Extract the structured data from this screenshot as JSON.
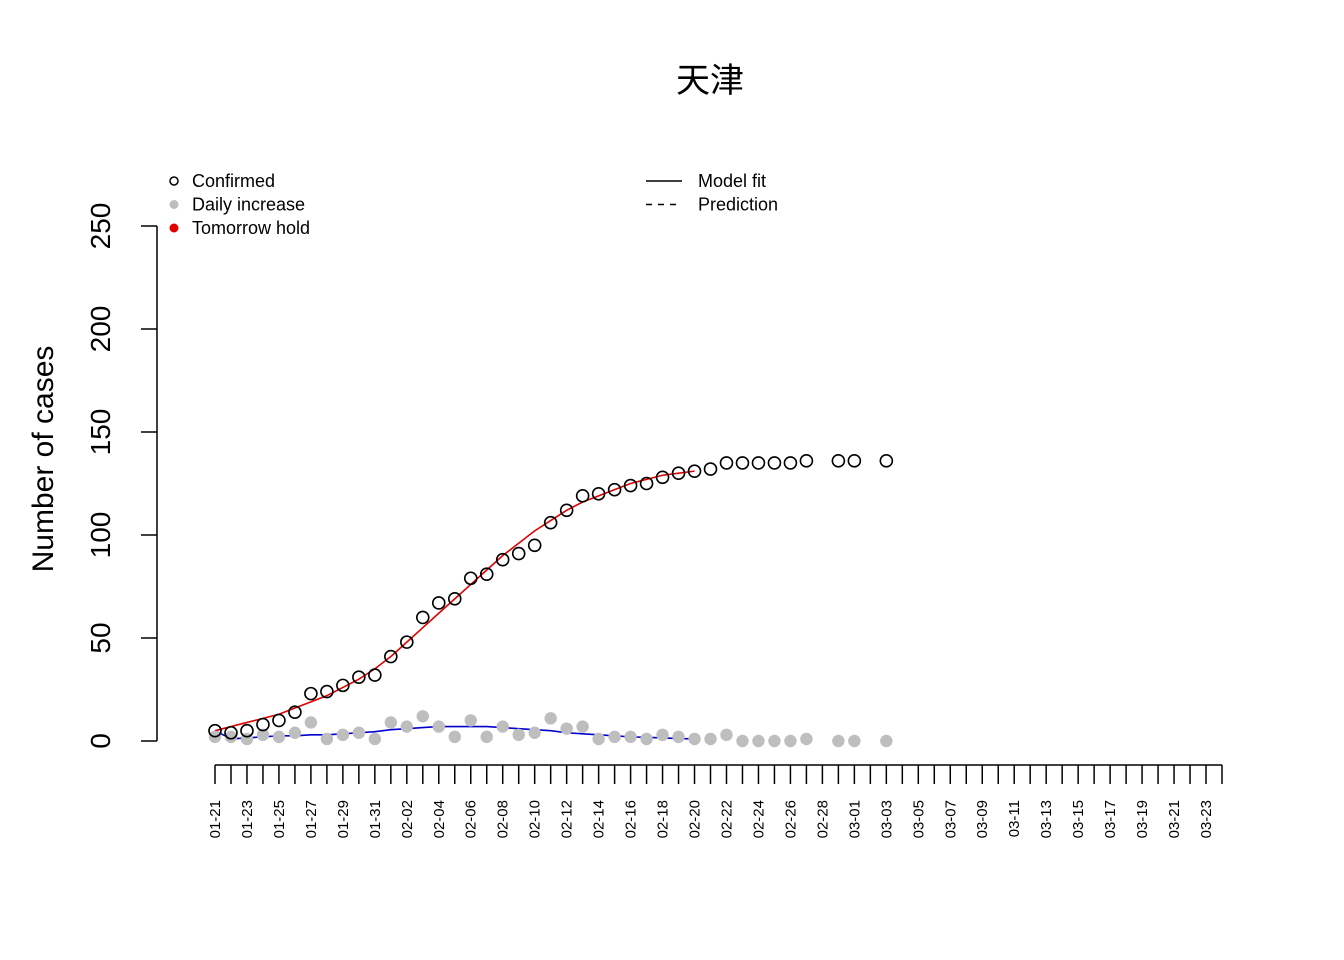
{
  "chart_data": {
    "type": "scatter",
    "title": "天津",
    "xlabel": "",
    "ylabel": "Number of cases",
    "ylim": [
      0,
      250
    ],
    "yticks": [
      0,
      50,
      100,
      150,
      200,
      250
    ],
    "x": [
      "01-21",
      "01-22",
      "01-23",
      "01-24",
      "01-25",
      "01-26",
      "01-27",
      "01-28",
      "01-29",
      "01-30",
      "01-31",
      "02-01",
      "02-02",
      "02-03",
      "02-04",
      "02-05",
      "02-06",
      "02-07",
      "02-08",
      "02-09",
      "02-10",
      "02-11",
      "02-12",
      "02-13",
      "02-14",
      "02-15",
      "02-16",
      "02-17",
      "02-18",
      "02-19",
      "02-20",
      "02-21",
      "02-22",
      "02-23",
      "02-24",
      "02-25",
      "02-26",
      "02-27",
      "02-28",
      "02-29",
      "03-01",
      "03-02",
      "03-03",
      "03-04",
      "03-05",
      "03-06",
      "03-07",
      "03-08",
      "03-09",
      "03-10",
      "03-11",
      "03-12",
      "03-13",
      "03-14",
      "03-15",
      "03-16",
      "03-17",
      "03-18",
      "03-19",
      "03-20",
      "03-21",
      "03-22",
      "03-23",
      "03-24"
    ],
    "x_tick_labels": [
      "01-21",
      "01-23",
      "01-25",
      "01-27",
      "01-29",
      "01-31",
      "02-02",
      "02-04",
      "02-06",
      "02-08",
      "02-10",
      "02-12",
      "02-14",
      "02-16",
      "02-18",
      "02-20",
      "02-22",
      "02-24",
      "02-26",
      "02-28",
      "03-01",
      "03-03",
      "03-05",
      "03-07",
      "03-09",
      "03-11",
      "03-13",
      "03-15",
      "03-17",
      "03-19",
      "03-21",
      "03-23"
    ],
    "series": [
      {
        "name": "Confirmed",
        "style": "open-circle",
        "color": "#000000",
        "points": [
          [
            "01-21",
            5
          ],
          [
            "01-22",
            4
          ],
          [
            "01-23",
            5
          ],
          [
            "01-24",
            8
          ],
          [
            "01-25",
            10
          ],
          [
            "01-26",
            14
          ],
          [
            "01-27",
            23
          ],
          [
            "01-28",
            24
          ],
          [
            "01-29",
            27
          ],
          [
            "01-30",
            31
          ],
          [
            "01-31",
            32
          ],
          [
            "02-01",
            41
          ],
          [
            "02-02",
            48
          ],
          [
            "02-03",
            60
          ],
          [
            "02-04",
            67
          ],
          [
            "02-05",
            69
          ],
          [
            "02-06",
            79
          ],
          [
            "02-07",
            81
          ],
          [
            "02-08",
            88
          ],
          [
            "02-09",
            91
          ],
          [
            "02-10",
            95
          ],
          [
            "02-11",
            106
          ],
          [
            "02-12",
            112
          ],
          [
            "02-13",
            119
          ],
          [
            "02-14",
            120
          ],
          [
            "02-15",
            122
          ],
          [
            "02-16",
            124
          ],
          [
            "02-17",
            125
          ],
          [
            "02-18",
            128
          ],
          [
            "02-19",
            130
          ],
          [
            "02-20",
            131
          ],
          [
            "02-21",
            132
          ],
          [
            "02-22",
            135
          ],
          [
            "02-23",
            135
          ],
          [
            "02-24",
            135
          ],
          [
            "02-25",
            135
          ],
          [
            "02-26",
            135
          ],
          [
            "02-27",
            136
          ],
          [
            "02-29",
            136
          ],
          [
            "03-01",
            136
          ],
          [
            "03-03",
            136
          ]
        ]
      },
      {
        "name": "Daily increase",
        "style": "filled-circle",
        "color": "#bebebe",
        "points": [
          [
            "01-21",
            2
          ],
          [
            "01-22",
            2
          ],
          [
            "01-23",
            1
          ],
          [
            "01-24",
            3
          ],
          [
            "01-25",
            2
          ],
          [
            "01-26",
            4
          ],
          [
            "01-27",
            9
          ],
          [
            "01-28",
            1
          ],
          [
            "01-29",
            3
          ],
          [
            "01-30",
            4
          ],
          [
            "01-31",
            1
          ],
          [
            "02-01",
            9
          ],
          [
            "02-02",
            7
          ],
          [
            "02-03",
            12
          ],
          [
            "02-04",
            7
          ],
          [
            "02-05",
            2
          ],
          [
            "02-06",
            10
          ],
          [
            "02-07",
            2
          ],
          [
            "02-08",
            7
          ],
          [
            "02-09",
            3
          ],
          [
            "02-10",
            4
          ],
          [
            "02-11",
            11
          ],
          [
            "02-12",
            6
          ],
          [
            "02-13",
            7
          ],
          [
            "02-14",
            1
          ],
          [
            "02-15",
            2
          ],
          [
            "02-16",
            2
          ],
          [
            "02-17",
            1
          ],
          [
            "02-18",
            3
          ],
          [
            "02-19",
            2
          ],
          [
            "02-20",
            1
          ],
          [
            "02-21",
            1
          ],
          [
            "02-22",
            3
          ],
          [
            "02-23",
            0
          ],
          [
            "02-24",
            0
          ],
          [
            "02-25",
            0
          ],
          [
            "02-26",
            0
          ],
          [
            "02-27",
            1
          ],
          [
            "02-29",
            0
          ],
          [
            "03-01",
            0
          ],
          [
            "03-03",
            0
          ]
        ]
      },
      {
        "name": "Model fit (cumulative)",
        "style": "line",
        "color": "#e00000",
        "points": [
          [
            "01-21",
            5
          ],
          [
            "01-22",
            7
          ],
          [
            "01-23",
            9
          ],
          [
            "01-24",
            11
          ],
          [
            "01-25",
            13
          ],
          [
            "01-26",
            16
          ],
          [
            "01-27",
            19
          ],
          [
            "01-28",
            22
          ],
          [
            "01-29",
            26
          ],
          [
            "01-30",
            30
          ],
          [
            "01-31",
            35
          ],
          [
            "02-01",
            41
          ],
          [
            "02-02",
            48
          ],
          [
            "02-03",
            55
          ],
          [
            "02-04",
            62
          ],
          [
            "02-05",
            69
          ],
          [
            "02-06",
            76
          ],
          [
            "02-07",
            83
          ],
          [
            "02-08",
            90
          ],
          [
            "02-09",
            96
          ],
          [
            "02-10",
            102
          ],
          [
            "02-11",
            107
          ],
          [
            "02-12",
            112
          ],
          [
            "02-13",
            116
          ],
          [
            "02-14",
            119
          ],
          [
            "02-15",
            122
          ],
          [
            "02-16",
            125
          ],
          [
            "02-17",
            127
          ],
          [
            "02-18",
            129
          ],
          [
            "02-19",
            130
          ],
          [
            "02-20",
            131
          ]
        ]
      },
      {
        "name": "Model fit (daily)",
        "style": "line",
        "color": "#0000cc",
        "points": [
          [
            "01-21",
            5
          ],
          [
            "01-22",
            1
          ],
          [
            "01-23",
            1.5
          ],
          [
            "01-24",
            2
          ],
          [
            "01-25",
            2.5
          ],
          [
            "01-26",
            2.5
          ],
          [
            "01-27",
            3
          ],
          [
            "01-28",
            3
          ],
          [
            "01-29",
            3.5
          ],
          [
            "01-30",
            4
          ],
          [
            "01-31",
            4.5
          ],
          [
            "02-01",
            5.5
          ],
          [
            "02-02",
            6
          ],
          [
            "02-03",
            6.5
          ],
          [
            "02-04",
            7
          ],
          [
            "02-05",
            7
          ],
          [
            "02-06",
            7
          ],
          [
            "02-07",
            7
          ],
          [
            "02-08",
            6.5
          ],
          [
            "02-09",
            6
          ],
          [
            "02-10",
            5.5
          ],
          [
            "02-11",
            5
          ],
          [
            "02-12",
            4
          ],
          [
            "02-13",
            3.5
          ],
          [
            "02-14",
            3
          ],
          [
            "02-15",
            2.5
          ],
          [
            "02-16",
            2
          ],
          [
            "02-17",
            1.8
          ],
          [
            "02-18",
            1.5
          ],
          [
            "02-19",
            1.2
          ],
          [
            "02-20",
            1
          ]
        ]
      }
    ],
    "legend": [
      {
        "label": "Confirmed",
        "symbol": "open-circle",
        "color": "#000000"
      },
      {
        "label": "Daily increase",
        "symbol": "filled-circle",
        "color": "#bebebe"
      },
      {
        "label": "Tomorrow hold",
        "symbol": "filled-circle",
        "color": "#e00000"
      },
      {
        "label": "Model fit",
        "symbol": "solid-line",
        "color": "#000000"
      },
      {
        "label": "Prediction",
        "symbol": "dashed-line",
        "color": "#000000"
      }
    ],
    "legend_placement": "top-left and top-center",
    "grid": false
  }
}
